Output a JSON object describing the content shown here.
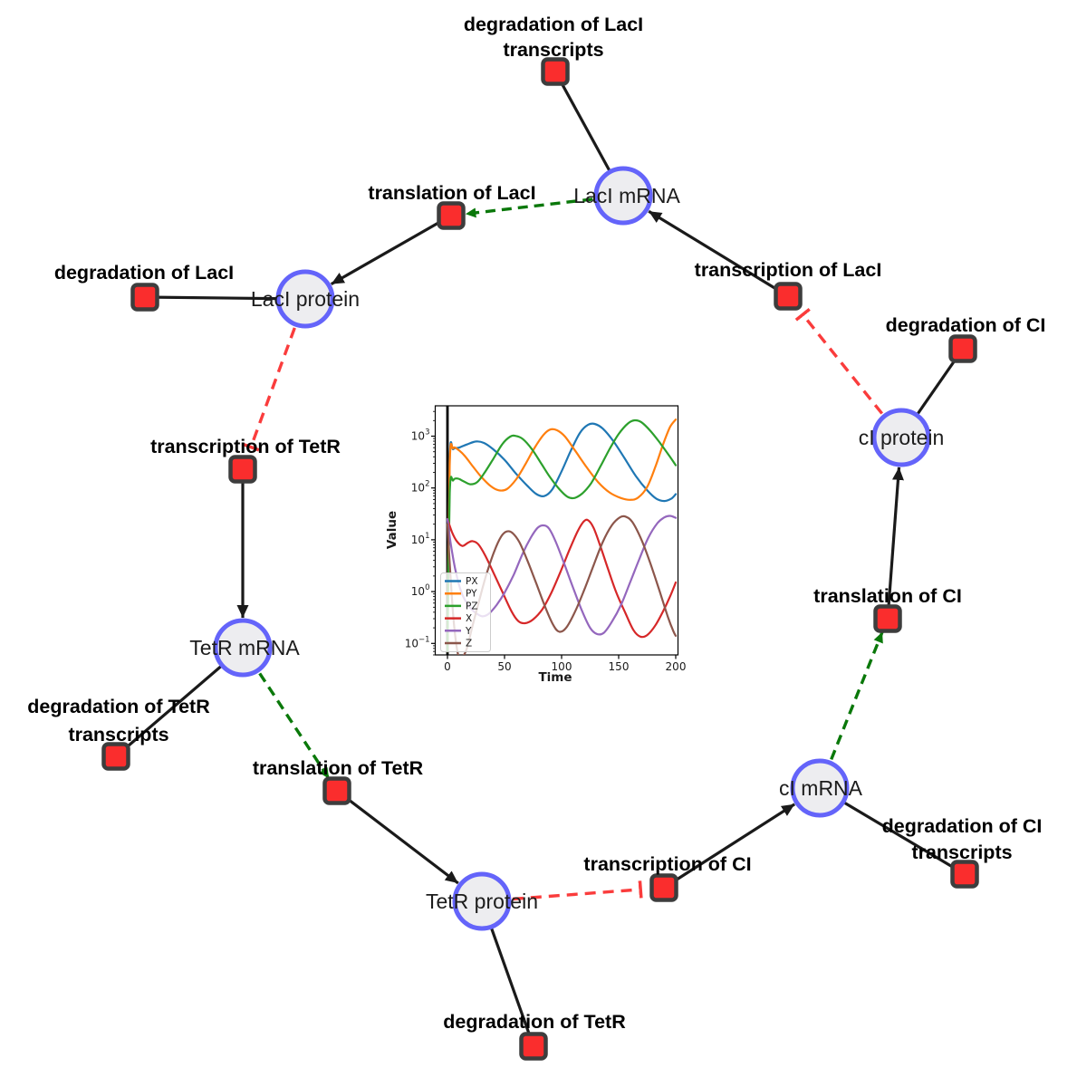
{
  "network": {
    "style": {
      "species_fill": "#ededf0",
      "species_stroke": "#6464fa",
      "reaction_fill": "#fa2d2d",
      "reaction_stroke": "#3d3d3d",
      "edge_main_color": "#1a1a1a",
      "edge_modifier_color": "#0a780a",
      "edge_inhibitor_color": "#fa3c3c"
    },
    "species": [
      {
        "id": "laci-mrna",
        "label": "LacI mRNA"
      },
      {
        "id": "laci-protein",
        "label": "LacI protein"
      },
      {
        "id": "tetr-mrna",
        "label": "TetR mRNA"
      },
      {
        "id": "tetr-protein",
        "label": "TetR protein"
      },
      {
        "id": "ci-mrna",
        "label": "cI mRNA"
      },
      {
        "id": "ci-protein",
        "label": "cI protein"
      }
    ],
    "reactions": [
      {
        "id": "deg-laci-transcripts",
        "label": "degradation of LacI transcripts",
        "lines": [
          "degradation of LacI",
          "transcripts"
        ]
      },
      {
        "id": "translation-laci",
        "label": "translation of LacI",
        "lines": [
          "translation of LacI"
        ]
      },
      {
        "id": "deg-laci",
        "label": "degradation of LacI",
        "lines": [
          "degradation of LacI"
        ]
      },
      {
        "id": "transcription-laci",
        "label": "transcription of LacI",
        "lines": [
          "transcription of LacI"
        ]
      },
      {
        "id": "deg-ci",
        "label": "degradation of CI",
        "lines": [
          "degradation of CI"
        ]
      },
      {
        "id": "transcription-tetr",
        "label": "transcription of TetR",
        "lines": [
          "transcription of TetR"
        ]
      },
      {
        "id": "deg-tetr-transcripts",
        "label": "degradation of TetR transcripts",
        "lines": [
          "degradation of TetR",
          "transcripts"
        ]
      },
      {
        "id": "translation-tetr",
        "label": "translation of TetR",
        "lines": [
          "translation of TetR"
        ]
      },
      {
        "id": "deg-tetr",
        "label": "degradation of TetR",
        "lines": [
          "degradation of TetR"
        ]
      },
      {
        "id": "transcription-ci",
        "label": "transcription of CI",
        "lines": [
          "transcription of CI"
        ]
      },
      {
        "id": "deg-ci-transcripts",
        "label": "degradation of CI transcripts",
        "lines": [
          "degradation of CI",
          "transcripts"
        ]
      },
      {
        "id": "translation-ci",
        "label": "translation of CI",
        "lines": [
          "translation of CI"
        ]
      }
    ],
    "edges": [
      {
        "from": "laci-mrna",
        "to": "deg-laci-transcripts",
        "type": "reactant"
      },
      {
        "from": "transcription-laci",
        "to": "laci-mrna",
        "type": "product"
      },
      {
        "from": "laci-mrna",
        "to": "translation-laci",
        "type": "modifier"
      },
      {
        "from": "translation-laci",
        "to": "laci-protein",
        "type": "product"
      },
      {
        "from": "laci-protein",
        "to": "deg-laci",
        "type": "reactant"
      },
      {
        "from": "laci-protein",
        "to": "transcription-tetr",
        "type": "inhibitor"
      },
      {
        "from": "transcription-tetr",
        "to": "tetr-mrna",
        "type": "product"
      },
      {
        "from": "tetr-mrna",
        "to": "deg-tetr-transcripts",
        "type": "reactant"
      },
      {
        "from": "tetr-mrna",
        "to": "translation-tetr",
        "type": "modifier"
      },
      {
        "from": "translation-tetr",
        "to": "tetr-protein",
        "type": "product"
      },
      {
        "from": "tetr-protein",
        "to": "deg-tetr",
        "type": "reactant"
      },
      {
        "from": "tetr-protein",
        "to": "transcription-ci",
        "type": "inhibitor"
      },
      {
        "from": "transcription-ci",
        "to": "ci-mrna",
        "type": "product"
      },
      {
        "from": "ci-mrna",
        "to": "deg-ci-transcripts",
        "type": "reactant"
      },
      {
        "from": "ci-mrna",
        "to": "translation-ci",
        "type": "modifier"
      },
      {
        "from": "translation-ci",
        "to": "ci-protein",
        "type": "product"
      },
      {
        "from": "ci-protein",
        "to": "deg-ci",
        "type": "reactant"
      },
      {
        "from": "ci-protein",
        "to": "transcription-laci",
        "type": "inhibitor"
      }
    ]
  },
  "chart_data": {
    "type": "line",
    "title": "",
    "xlabel": "Time",
    "ylabel": "Value",
    "y_scale": "log",
    "x_ticks": [
      0,
      50,
      100,
      150,
      200
    ],
    "y_tick_exponents": [
      3,
      2,
      1,
      0,
      -1
    ],
    "xlim": [
      -11,
      202
    ],
    "ylim": [
      0.058,
      3855
    ],
    "grid": false,
    "vline_x": 0,
    "legend_position": "lower left",
    "series": [
      {
        "name": "PX",
        "color": "#1f77b4",
        "points": [
          [
            0,
            0.07
          ],
          [
            2,
            350
          ],
          [
            5,
            560
          ],
          [
            10,
            600
          ],
          [
            17,
            690
          ],
          [
            25,
            790
          ],
          [
            32,
            740
          ],
          [
            40,
            560
          ],
          [
            50,
            350
          ],
          [
            60,
            190
          ],
          [
            70,
            110
          ],
          [
            78,
            76
          ],
          [
            85,
            70
          ],
          [
            92,
            95
          ],
          [
            100,
            210
          ],
          [
            108,
            520
          ],
          [
            116,
            1150
          ],
          [
            123,
            1650
          ],
          [
            129,
            1720
          ],
          [
            136,
            1400
          ],
          [
            145,
            820
          ],
          [
            155,
            380
          ],
          [
            165,
            170
          ],
          [
            175,
            90
          ],
          [
            183,
            62
          ],
          [
            190,
            56
          ],
          [
            196,
            62
          ],
          [
            200,
            76
          ]
        ]
      },
      {
        "name": "PY",
        "color": "#ff7f0e",
        "points": [
          [
            0,
            0.07
          ],
          [
            2,
            300
          ],
          [
            5,
            580
          ],
          [
            9,
            555
          ],
          [
            15,
            420
          ],
          [
            22,
            265
          ],
          [
            30,
            160
          ],
          [
            38,
            108
          ],
          [
            45,
            90
          ],
          [
            52,
            95
          ],
          [
            60,
            145
          ],
          [
            68,
            280
          ],
          [
            76,
            580
          ],
          [
            84,
            1050
          ],
          [
            90,
            1340
          ],
          [
            96,
            1300
          ],
          [
            103,
            980
          ],
          [
            112,
            520
          ],
          [
            122,
            250
          ],
          [
            132,
            130
          ],
          [
            142,
            82
          ],
          [
            152,
            64
          ],
          [
            160,
            59
          ],
          [
            167,
            65
          ],
          [
            175,
            105
          ],
          [
            182,
            250
          ],
          [
            189,
            700
          ],
          [
            195,
            1500
          ],
          [
            200,
            2100
          ]
        ]
      },
      {
        "name": "PZ",
        "color": "#2ca02c",
        "points": [
          [
            0,
            0.07
          ],
          [
            2,
            80
          ],
          [
            5,
            140
          ],
          [
            9,
            152
          ],
          [
            14,
            135
          ],
          [
            20,
            118
          ],
          [
            26,
            130
          ],
          [
            32,
            190
          ],
          [
            40,
            360
          ],
          [
            48,
            700
          ],
          [
            55,
            980
          ],
          [
            60,
            1010
          ],
          [
            66,
            880
          ],
          [
            74,
            560
          ],
          [
            82,
            300
          ],
          [
            90,
            160
          ],
          [
            98,
            95
          ],
          [
            105,
            68
          ],
          [
            111,
            64
          ],
          [
            118,
            78
          ],
          [
            126,
            125
          ],
          [
            134,
            260
          ],
          [
            142,
            560
          ],
          [
            150,
            1100
          ],
          [
            158,
            1750
          ],
          [
            164,
            2020
          ],
          [
            170,
            1850
          ],
          [
            178,
            1250
          ],
          [
            186,
            750
          ],
          [
            194,
            430
          ],
          [
            200,
            275
          ]
        ]
      },
      {
        "name": "X",
        "color": "#d62728",
        "points": [
          [
            0,
            25
          ],
          [
            4,
            14
          ],
          [
            8,
            9.5
          ],
          [
            13,
            7.6
          ],
          [
            18,
            8.8
          ],
          [
            22,
            9.4
          ],
          [
            27,
            8.2
          ],
          [
            33,
            5
          ],
          [
            40,
            2.4
          ],
          [
            48,
            1.0
          ],
          [
            56,
            0.42
          ],
          [
            62,
            0.27
          ],
          [
            68,
            0.245
          ],
          [
            75,
            0.29
          ],
          [
            83,
            0.45
          ],
          [
            91,
            0.95
          ],
          [
            99,
            2.4
          ],
          [
            107,
            6.5
          ],
          [
            114,
            14.5
          ],
          [
            119,
            22
          ],
          [
            123,
            24
          ],
          [
            128,
            17
          ],
          [
            134,
            7.5
          ],
          [
            141,
            2.6
          ],
          [
            148,
            0.95
          ],
          [
            156,
            0.38
          ],
          [
            163,
            0.18
          ],
          [
            169,
            0.135
          ],
          [
            175,
            0.145
          ],
          [
            182,
            0.22
          ],
          [
            189,
            0.42
          ],
          [
            195,
            0.8
          ],
          [
            200,
            1.5
          ]
        ]
      },
      {
        "name": "Y",
        "color": "#9467bd",
        "points": [
          [
            0,
            25
          ],
          [
            3,
            8
          ],
          [
            7,
            2.6
          ],
          [
            12,
            1.0
          ],
          [
            18,
            0.55
          ],
          [
            24,
            0.4
          ],
          [
            30,
            0.335
          ],
          [
            36,
            0.37
          ],
          [
            43,
            0.55
          ],
          [
            50,
            0.95
          ],
          [
            58,
            2.1
          ],
          [
            66,
            5.5
          ],
          [
            73,
            11
          ],
          [
            79,
            17
          ],
          [
            84,
            19
          ],
          [
            89,
            16.5
          ],
          [
            95,
            9
          ],
          [
            102,
            3.6
          ],
          [
            110,
            1.2
          ],
          [
            118,
            0.42
          ],
          [
            125,
            0.2
          ],
          [
            131,
            0.152
          ],
          [
            137,
            0.16
          ],
          [
            144,
            0.26
          ],
          [
            152,
            0.55
          ],
          [
            160,
            1.5
          ],
          [
            168,
            4.2
          ],
          [
            176,
            11
          ],
          [
            184,
            21
          ],
          [
            190,
            27
          ],
          [
            195,
            29
          ],
          [
            200,
            26.5
          ]
        ]
      },
      {
        "name": "Z",
        "color": "#8c564b",
        "points": [
          [
            0,
            20
          ],
          [
            3,
            1.5
          ],
          [
            6,
            0.2
          ],
          [
            10,
            0.055
          ],
          [
            16,
            0.07
          ],
          [
            22,
            0.22
          ],
          [
            28,
            0.7
          ],
          [
            34,
            2.1
          ],
          [
            41,
            6
          ],
          [
            47,
            11.5
          ],
          [
            52,
            14.5
          ],
          [
            57,
            13.5
          ],
          [
            63,
            9
          ],
          [
            70,
            4
          ],
          [
            78,
            1.4
          ],
          [
            86,
            0.48
          ],
          [
            93,
            0.22
          ],
          [
            98,
            0.168
          ],
          [
            104,
            0.2
          ],
          [
            112,
            0.42
          ],
          [
            120,
            1.1
          ],
          [
            128,
            3.2
          ],
          [
            136,
            9
          ],
          [
            144,
            19
          ],
          [
            151,
            27
          ],
          [
            156,
            28
          ],
          [
            162,
            22
          ],
          [
            170,
            10
          ],
          [
            178,
            3.4
          ],
          [
            186,
            1.0
          ],
          [
            193,
            0.33
          ],
          [
            198,
            0.17
          ],
          [
            200,
            0.14
          ]
        ]
      }
    ]
  }
}
